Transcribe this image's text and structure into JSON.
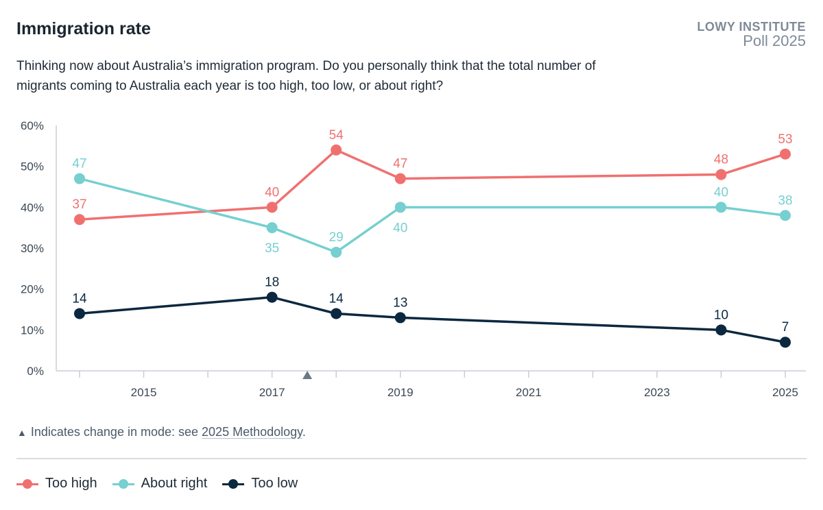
{
  "header": {
    "title": "Immigration rate",
    "brand_line1": "LOWY INSTITUTE",
    "brand_line2": "Poll 2025",
    "subtitle": "Thinking now about Australia’s immigration program. Do you personally think that the total number of migrants coming to Australia each year is too high, too low, or about right?"
  },
  "note": {
    "symbol": "▲",
    "text": "Indicates change in mode: see ",
    "link": "2025 Methodology",
    "end": "."
  },
  "chart_data": {
    "type": "line",
    "x_range": [
      2014,
      2025
    ],
    "y_range": [
      0,
      60
    ],
    "y_ticks": [
      0,
      10,
      20,
      30,
      40,
      50,
      60
    ],
    "y_tick_labels": [
      "0%",
      "10%",
      "20%",
      "30%",
      "40%",
      "50%",
      "60%"
    ],
    "x_tick_labels": [
      "2015",
      "2017",
      "2019",
      "2021",
      "2023",
      "2025"
    ],
    "x_tick_values": [
      2015,
      2017,
      2019,
      2021,
      2023,
      2025
    ],
    "mode_change_marker": 2017.55,
    "legend_position": "bottom-left",
    "series": [
      {
        "name": "Too high",
        "color": "#f07070",
        "x": [
          2014,
          2017,
          2018,
          2019,
          2024,
          2025
        ],
        "values": [
          37,
          40,
          54,
          47,
          48,
          53
        ],
        "label_pos": [
          "above",
          "above",
          "above",
          "above",
          "above",
          "above"
        ]
      },
      {
        "name": "About right",
        "color": "#76cfd0",
        "x": [
          2014,
          2017,
          2018,
          2019,
          2024,
          2025
        ],
        "values": [
          47,
          35,
          29,
          40,
          40,
          38
        ],
        "label_pos": [
          "above",
          "below",
          "above",
          "below",
          "above",
          "above"
        ]
      },
      {
        "name": "Too low",
        "color": "#0b2840",
        "x": [
          2014,
          2017,
          2018,
          2019,
          2024,
          2025
        ],
        "values": [
          14,
          18,
          14,
          13,
          10,
          7
        ],
        "label_pos": [
          "above",
          "above",
          "above",
          "above",
          "above",
          "above"
        ]
      }
    ]
  }
}
